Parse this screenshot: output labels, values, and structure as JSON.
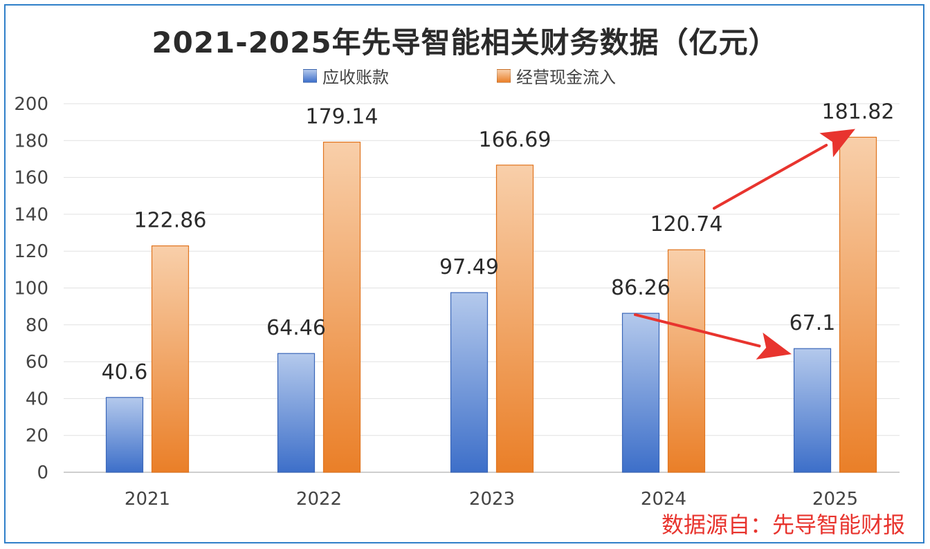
{
  "chart_data": {
    "type": "bar",
    "title": "2021-2025年先导智能相关财务数据（亿元）",
    "categories": [
      "2021",
      "2022",
      "2023",
      "2024",
      "2025"
    ],
    "series": [
      {
        "name": "应收账款",
        "values": [
          40.6,
          64.46,
          97.49,
          86.26,
          67.1
        ],
        "labels": [
          "40.6",
          "64.46",
          "97.49",
          "86.26",
          "67.1"
        ],
        "color_top": "#b4c9ec",
        "color_bottom": "#3d6fc9",
        "border": "#3a66b8"
      },
      {
        "name": "经营现金流入",
        "values": [
          122.86,
          179.14,
          166.69,
          120.74,
          181.82
        ],
        "labels": [
          "122.86",
          "179.14",
          "166.69",
          "120.74",
          "181.82"
        ],
        "color_top": "#f8cfaa",
        "color_bottom": "#ea7f28",
        "border": "#e0741e"
      }
    ],
    "ylim": [
      0,
      200
    ],
    "yticks": [
      "0",
      "20",
      "40",
      "60",
      "80",
      "100",
      "120",
      "140",
      "160",
      "180",
      "200"
    ],
    "grid": true,
    "legend_position": "top-center",
    "annotations": [
      {
        "type": "arrow",
        "from_series": 0,
        "from_category": "2024",
        "to_category": "2025",
        "color": "#e8342e"
      },
      {
        "type": "arrow",
        "from_series": 1,
        "from_category": "2024",
        "to_category": "2025",
        "color": "#e8342e"
      }
    ],
    "source_note": "数据源自：先导智能财报"
  }
}
